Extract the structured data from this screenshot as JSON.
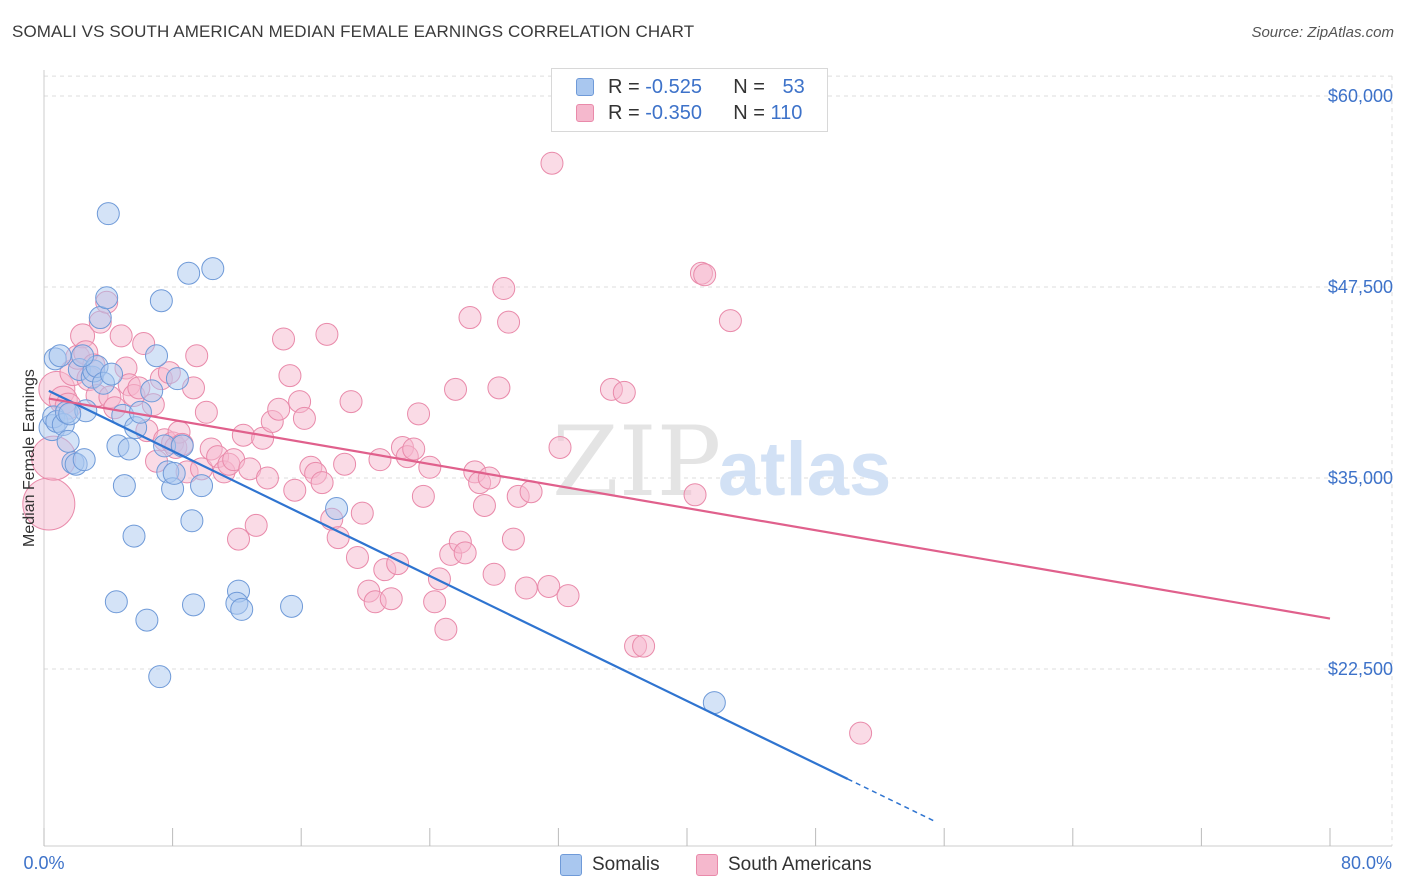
{
  "title": "SOMALI VS SOUTH AMERICAN MEDIAN FEMALE EARNINGS CORRELATION CHART",
  "source": "Source: ZipAtlas.com",
  "watermark": {
    "zip": "ZIP",
    "atlas": "atlas"
  },
  "legend": {
    "somali": {
      "r_label": "R =",
      "r_value": "-0.525",
      "n_label": "N =",
      "n_value": "53"
    },
    "south": {
      "r_label": "R =",
      "r_value": "-0.350",
      "n_label": "N =",
      "n_value": "110"
    }
  },
  "bottom_legend": {
    "somali": "Somalis",
    "south": "South Americans"
  },
  "colors": {
    "somali_fill": "#a9c7ef",
    "somali_stroke": "#6f9ad8",
    "somali_line": "#2f74d0",
    "south_fill": "#f5b8cd",
    "south_stroke": "#e98aaa",
    "south_line": "#e0608c",
    "tick_text": "#3d72c9",
    "grid": "#dedede"
  },
  "chart_data": {
    "type": "scatter",
    "title": "SOMALI VS SOUTH AMERICAN MEDIAN FEMALE EARNINGS CORRELATION CHART",
    "xlabel": "",
    "ylabel": "Median Female Earnings",
    "xlim": [
      0,
      80
    ],
    "ylim": [
      12500,
      62000
    ],
    "x_tick_labels": [
      "0.0%",
      "80.0%"
    ],
    "y_ticks": [
      22500,
      35000,
      47500,
      60000
    ],
    "y_tick_labels": [
      "$22,500",
      "$35,000",
      "$47,500",
      "$60,000"
    ],
    "grid": true,
    "series": [
      {
        "name": "Somalis",
        "trend": {
          "x0": 0.3,
          "y0": 40700,
          "x1": 50,
          "y1": 15300,
          "dash_to_x": 55.5
        },
        "points": [
          [
            0.5,
            38300
          ],
          [
            0.6,
            39000
          ],
          [
            0.7,
            42800
          ],
          [
            0.8,
            38700
          ],
          [
            1.0,
            43000
          ],
          [
            1.2,
            38500
          ],
          [
            1.4,
            39300
          ],
          [
            1.5,
            37400
          ],
          [
            1.8,
            36000
          ],
          [
            2.0,
            35900
          ],
          [
            2.2,
            42100
          ],
          [
            2.5,
            36200
          ],
          [
            2.6,
            39400
          ],
          [
            3.0,
            41600
          ],
          [
            3.1,
            42000
          ],
          [
            3.3,
            42300
          ],
          [
            3.5,
            45500
          ],
          [
            3.7,
            41200
          ],
          [
            3.9,
            46800
          ],
          [
            4.0,
            52300
          ],
          [
            4.2,
            41800
          ],
          [
            4.5,
            26900
          ],
          [
            4.6,
            37100
          ],
          [
            4.9,
            39100
          ],
          [
            5.0,
            34500
          ],
          [
            5.3,
            36900
          ],
          [
            5.6,
            31200
          ],
          [
            5.7,
            38300
          ],
          [
            6.0,
            39300
          ],
          [
            6.4,
            25700
          ],
          [
            6.7,
            40700
          ],
          [
            7.0,
            43000
          ],
          [
            7.2,
            22000
          ],
          [
            7.3,
            46600
          ],
          [
            7.5,
            37100
          ],
          [
            7.7,
            35400
          ],
          [
            8.0,
            34300
          ],
          [
            8.1,
            35300
          ],
          [
            8.3,
            41500
          ],
          [
            8.6,
            37100
          ],
          [
            9.0,
            48400
          ],
          [
            9.2,
            32200
          ],
          [
            9.3,
            26700
          ],
          [
            9.8,
            34500
          ],
          [
            10.5,
            48700
          ],
          [
            12.1,
            27600
          ],
          [
            12.0,
            26800
          ],
          [
            12.3,
            26400
          ],
          [
            15.4,
            26600
          ],
          [
            18.2,
            33000
          ],
          [
            41.7,
            20300
          ],
          [
            1.6,
            39200
          ],
          [
            2.4,
            43000
          ]
        ],
        "sizes": [
          13,
          11,
          11,
          11,
          11,
          11,
          11,
          11,
          11,
          11,
          11,
          11,
          11,
          11,
          11,
          11,
          11,
          11,
          11,
          11,
          11,
          11,
          11,
          11,
          11,
          11,
          11,
          11,
          11,
          11,
          11,
          11,
          11,
          11,
          11,
          11,
          11,
          11,
          11,
          11,
          11,
          11,
          11,
          11,
          11,
          11,
          11,
          11,
          11,
          11,
          11,
          11,
          11
        ]
      },
      {
        "name": "South Americans",
        "trend": {
          "x0": 0.3,
          "y0": 40200,
          "x1": 80,
          "y1": 25800
        },
        "points": [
          [
            0.3,
            33300
          ],
          [
            0.6,
            36300
          ],
          [
            0.8,
            40800
          ],
          [
            1.2,
            40100
          ],
          [
            1.5,
            39700
          ],
          [
            1.8,
            41900
          ],
          [
            2.1,
            42900
          ],
          [
            2.4,
            44300
          ],
          [
            2.6,
            43200
          ],
          [
            2.8,
            41500
          ],
          [
            3.1,
            42400
          ],
          [
            3.3,
            40400
          ],
          [
            3.5,
            45200
          ],
          [
            3.9,
            46500
          ],
          [
            4.1,
            40300
          ],
          [
            4.4,
            39600
          ],
          [
            4.8,
            44300
          ],
          [
            5.1,
            42200
          ],
          [
            5.3,
            41100
          ],
          [
            5.6,
            40400
          ],
          [
            5.9,
            40900
          ],
          [
            6.2,
            43800
          ],
          [
            6.4,
            38100
          ],
          [
            6.8,
            39800
          ],
          [
            7.0,
            36100
          ],
          [
            7.3,
            41500
          ],
          [
            7.5,
            37500
          ],
          [
            7.8,
            41900
          ],
          [
            8.0,
            37300
          ],
          [
            8.2,
            37000
          ],
          [
            8.4,
            38000
          ],
          [
            8.6,
            37200
          ],
          [
            8.9,
            35400
          ],
          [
            9.3,
            40900
          ],
          [
            9.5,
            43000
          ],
          [
            9.8,
            35600
          ],
          [
            10.1,
            39300
          ],
          [
            10.4,
            36900
          ],
          [
            10.8,
            36400
          ],
          [
            11.2,
            35400
          ],
          [
            11.5,
            35900
          ],
          [
            11.8,
            36200
          ],
          [
            12.1,
            31000
          ],
          [
            12.4,
            37800
          ],
          [
            12.8,
            35600
          ],
          [
            13.2,
            31900
          ],
          [
            13.6,
            37600
          ],
          [
            13.9,
            35000
          ],
          [
            14.2,
            38700
          ],
          [
            14.6,
            39500
          ],
          [
            14.9,
            44100
          ],
          [
            15.3,
            41700
          ],
          [
            15.6,
            34200
          ],
          [
            15.9,
            40000
          ],
          [
            16.2,
            38900
          ],
          [
            16.6,
            35700
          ],
          [
            16.9,
            35300
          ],
          [
            17.3,
            34700
          ],
          [
            17.6,
            44400
          ],
          [
            17.9,
            32300
          ],
          [
            18.3,
            31100
          ],
          [
            18.7,
            35900
          ],
          [
            19.1,
            40000
          ],
          [
            19.5,
            29800
          ],
          [
            19.8,
            32700
          ],
          [
            20.2,
            27600
          ],
          [
            20.6,
            26900
          ],
          [
            20.9,
            36200
          ],
          [
            21.2,
            29000
          ],
          [
            21.6,
            27100
          ],
          [
            22.0,
            29400
          ],
          [
            22.3,
            37000
          ],
          [
            22.6,
            36400
          ],
          [
            23.0,
            36900
          ],
          [
            23.3,
            39200
          ],
          [
            23.6,
            33800
          ],
          [
            24.0,
            35700
          ],
          [
            24.3,
            26900
          ],
          [
            24.6,
            28400
          ],
          [
            25.0,
            25100
          ],
          [
            25.3,
            30000
          ],
          [
            25.6,
            40800
          ],
          [
            25.9,
            30800
          ],
          [
            26.2,
            30100
          ],
          [
            26.5,
            45500
          ],
          [
            26.8,
            35400
          ],
          [
            27.1,
            34700
          ],
          [
            27.4,
            33200
          ],
          [
            27.7,
            35000
          ],
          [
            28.0,
            28700
          ],
          [
            28.3,
            40900
          ],
          [
            28.6,
            47400
          ],
          [
            28.9,
            45200
          ],
          [
            29.2,
            31000
          ],
          [
            29.5,
            33800
          ],
          [
            30.0,
            27800
          ],
          [
            30.3,
            34100
          ],
          [
            31.4,
            27900
          ],
          [
            31.6,
            55600
          ],
          [
            32.1,
            37000
          ],
          [
            32.6,
            27300
          ],
          [
            35.3,
            40800
          ],
          [
            36.1,
            40600
          ],
          [
            36.8,
            24000
          ],
          [
            37.3,
            24000
          ],
          [
            40.5,
            33900
          ],
          [
            40.9,
            48400
          ],
          [
            41.1,
            48300
          ],
          [
            42.7,
            45300
          ],
          [
            50.8,
            18300
          ]
        ],
        "sizes": [
          26,
          22,
          18,
          14,
          13,
          13,
          12,
          12,
          12,
          12,
          11,
          11,
          11,
          11,
          11,
          11,
          11,
          11,
          11,
          11,
          11,
          11,
          11,
          11,
          11,
          11,
          11,
          11,
          11,
          11,
          11,
          11,
          11,
          11,
          11,
          11,
          11,
          11,
          11,
          11,
          11,
          11,
          11,
          11,
          11,
          11,
          11,
          11,
          11,
          11,
          11,
          11,
          11,
          11,
          11,
          11,
          11,
          11,
          11,
          11,
          11,
          11,
          11,
          11,
          11,
          11,
          11,
          11,
          11,
          11,
          11,
          11,
          11,
          11,
          11,
          11,
          11,
          11,
          11,
          11,
          11,
          11,
          11,
          11,
          11,
          11,
          11,
          11,
          11,
          11,
          11,
          11,
          11,
          11,
          11,
          11,
          11,
          11,
          11,
          11,
          11,
          11,
          11,
          11,
          11,
          11,
          11,
          11,
          11,
          11
        ]
      }
    ]
  }
}
